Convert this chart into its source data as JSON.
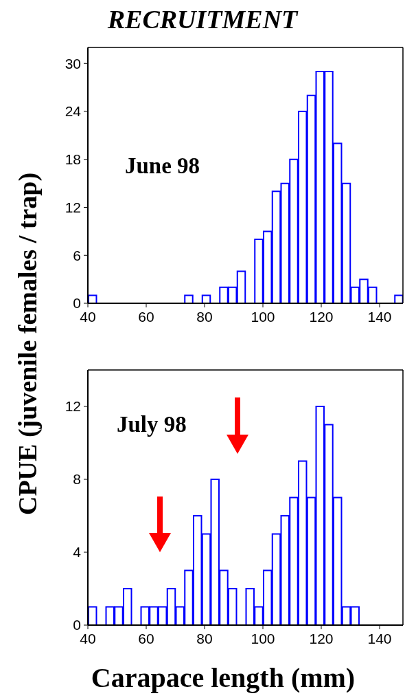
{
  "chart_data": [
    {
      "type": "histogram",
      "title": "RECRUITMENT",
      "ylabel": "CPUE (juvenile females / trap)",
      "annotations": [
        "June 98"
      ],
      "color": "#0000ff",
      "bins": [
        40,
        43,
        46,
        49,
        52,
        55,
        58,
        61,
        64,
        67,
        70,
        73,
        76,
        79,
        82,
        85,
        88,
        91,
        94,
        97,
        100,
        103,
        106,
        109,
        112,
        115,
        118,
        121,
        124,
        127,
        130,
        133,
        136,
        139,
        142,
        145,
        148
      ],
      "values": [
        1,
        0,
        0,
        0,
        0,
        0,
        0,
        0,
        0,
        0,
        0,
        1,
        0,
        1,
        0,
        2,
        2,
        4,
        0,
        8,
        9,
        14,
        15,
        18,
        24,
        26,
        29,
        29,
        20,
        15,
        2,
        3,
        2,
        0,
        0,
        1
      ],
      "xlim": [
        40,
        148
      ],
      "xticks": [
        40,
        60,
        80,
        100,
        120,
        140
      ],
      "ylim": [
        0,
        32
      ],
      "yticks": [
        0,
        6,
        12,
        18,
        24,
        30
      ],
      "grid": false
    },
    {
      "type": "histogram",
      "xlabel": "Carapace length (mm)",
      "annotations": [
        "July 98"
      ],
      "color": "#0000ff",
      "bins": [
        40,
        43,
        46,
        49,
        52,
        55,
        58,
        61,
        64,
        67,
        70,
        73,
        76,
        79,
        82,
        85,
        88,
        91,
        94,
        97,
        100,
        103,
        106,
        109,
        112,
        115,
        118,
        121,
        124,
        127,
        130,
        133,
        136,
        139,
        142,
        145,
        148
      ],
      "values": [
        1,
        0,
        1,
        1,
        2,
        0,
        1,
        1,
        1,
        2,
        1,
        3,
        6,
        5,
        8,
        3,
        2,
        0,
        2,
        1,
        3,
        5,
        6,
        7,
        9,
        7,
        12,
        11,
        7,
        1,
        1,
        0,
        0,
        0,
        0,
        0
      ],
      "xlim": [
        40,
        148
      ],
      "xticks": [
        40,
        60,
        80,
        100,
        120,
        140
      ],
      "ylim": [
        0,
        14
      ],
      "yticks": [
        0,
        4,
        8,
        12
      ],
      "grid": false
    }
  ]
}
